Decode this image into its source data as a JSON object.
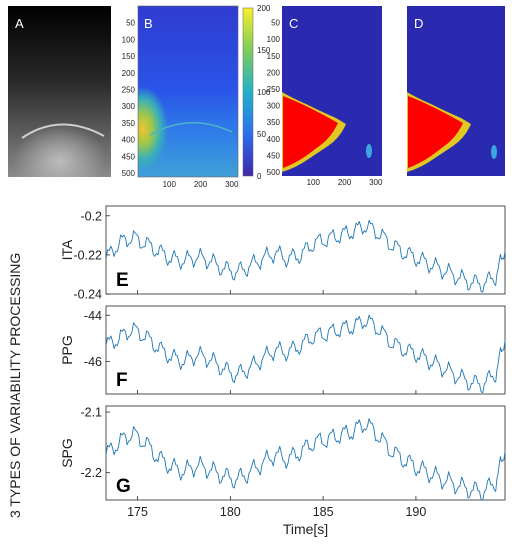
{
  "figure": {
    "side_title": "3 TYPES OF VARIABILITY PROCESSING",
    "images": [
      {
        "letter": "A",
        "kind": "grayscale-thermal"
      },
      {
        "letter": "B",
        "kind": "colormap",
        "colorbar_ticks": [
          "200",
          "150",
          "100",
          "50",
          "0"
        ]
      },
      {
        "letter": "C",
        "kind": "segmentation-mask"
      },
      {
        "letter": "D",
        "kind": "segmentation-mask"
      }
    ],
    "image_y_ticks": [
      "50",
      "100",
      "150",
      "200",
      "250",
      "300",
      "350",
      "400",
      "450",
      "500"
    ],
    "image_x_ticks": [
      "100",
      "200",
      "300"
    ],
    "colors": {
      "line": "#1f77b4",
      "mask_bg": "#2a2ab0",
      "mask_fg": "#ff0000"
    }
  },
  "chart_data": [
    {
      "type": "line",
      "letter": "E",
      "ylabel": "ITA",
      "ylim": [
        -0.24,
        -0.195
      ],
      "yticks": [
        "-0.2",
        "-0.22",
        "-0.24"
      ],
      "ytick_values": [
        -0.2,
        -0.22,
        -0.24
      ],
      "xlim": [
        173.3,
        194.8
      ],
      "x": [
        173.3,
        174.0,
        174.7,
        175.4,
        176.1,
        176.8,
        177.5,
        178.2,
        178.9,
        179.6,
        180.3,
        181.0,
        181.7,
        182.4,
        183.1,
        183.8,
        184.5,
        185.2,
        185.9,
        186.6,
        187.3,
        188.0,
        188.7,
        189.4,
        190.1,
        190.8,
        191.5,
        192.2,
        192.9,
        193.6,
        194.3,
        194.8
      ],
      "values": [
        -0.222,
        -0.214,
        -0.211,
        -0.214,
        -0.218,
        -0.222,
        -0.223,
        -0.221,
        -0.223,
        -0.227,
        -0.229,
        -0.226,
        -0.222,
        -0.219,
        -0.222,
        -0.22,
        -0.214,
        -0.212,
        -0.21,
        -0.208,
        -0.205,
        -0.209,
        -0.215,
        -0.219,
        -0.222,
        -0.225,
        -0.228,
        -0.231,
        -0.234,
        -0.235,
        -0.231,
        -0.218
      ]
    },
    {
      "type": "line",
      "letter": "F",
      "ylabel": "PPG",
      "ylim": [
        -47.4,
        -43.6
      ],
      "yticks": [
        "-44",
        "-46"
      ],
      "ytick_values": [
        -44,
        -46
      ],
      "xlim": [
        173.3,
        194.8
      ],
      "x": [
        173.3,
        174.0,
        174.7,
        175.4,
        176.1,
        176.8,
        177.5,
        178.2,
        178.9,
        179.6,
        180.3,
        181.0,
        181.7,
        182.4,
        183.1,
        183.8,
        184.5,
        185.2,
        185.9,
        186.6,
        187.3,
        188.0,
        188.7,
        189.4,
        190.1,
        190.8,
        191.5,
        192.2,
        192.9,
        193.6,
        194.3,
        194.8
      ],
      "values": [
        -45.3,
        -45.0,
        -44.6,
        -44.9,
        -45.4,
        -45.8,
        -46.0,
        -45.7,
        -45.9,
        -46.3,
        -46.6,
        -46.3,
        -45.9,
        -45.5,
        -45.6,
        -45.3,
        -44.9,
        -44.8,
        -44.6,
        -44.5,
        -44.2,
        -44.6,
        -45.2,
        -45.5,
        -45.7,
        -46.0,
        -46.3,
        -46.6,
        -46.9,
        -47.0,
        -46.5,
        -45.1
      ]
    },
    {
      "type": "line",
      "letter": "G",
      "ylabel": "SPG",
      "ylim": [
        -2.245,
        -2.09
      ],
      "yticks": [
        "-2.1",
        "-2.2"
      ],
      "ytick_values": [
        -2.1,
        -2.2
      ],
      "xlim": [
        173.3,
        194.8
      ],
      "xticks": [
        "175",
        "180",
        "185",
        "190"
      ],
      "xtick_values": [
        175,
        180,
        185,
        190
      ],
      "xlabel": "Time[s]",
      "x": [
        173.3,
        174.0,
        174.7,
        175.4,
        176.1,
        176.8,
        177.5,
        178.2,
        178.9,
        179.6,
        180.3,
        181.0,
        181.7,
        182.4,
        183.1,
        183.8,
        184.5,
        185.2,
        185.9,
        186.6,
        187.3,
        188.0,
        188.7,
        189.4,
        190.1,
        190.8,
        191.5,
        192.2,
        192.9,
        193.6,
        194.3,
        194.8
      ],
      "values": [
        -2.17,
        -2.15,
        -2.135,
        -2.15,
        -2.175,
        -2.19,
        -2.198,
        -2.188,
        -2.195,
        -2.205,
        -2.212,
        -2.2,
        -2.185,
        -2.17,
        -2.178,
        -2.165,
        -2.15,
        -2.145,
        -2.138,
        -2.132,
        -2.118,
        -2.14,
        -2.165,
        -2.18,
        -2.192,
        -2.202,
        -2.212,
        -2.22,
        -2.228,
        -2.232,
        -2.215,
        -2.165
      ]
    }
  ]
}
